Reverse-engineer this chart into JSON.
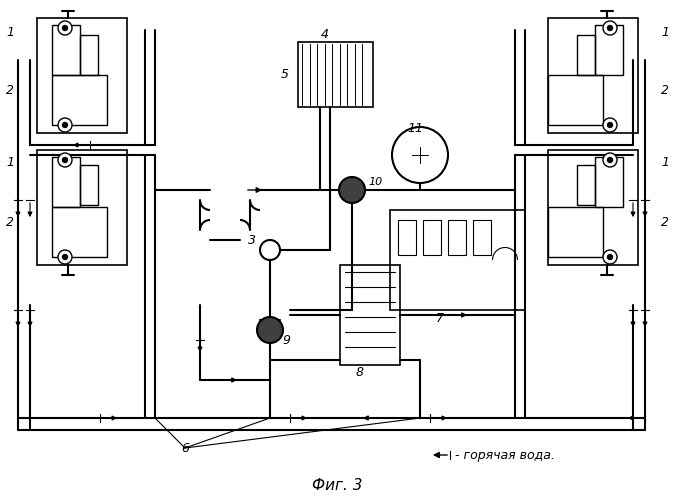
{
  "bg_color": "#ffffff",
  "line_color": "#000000",
  "fig_width": 6.75,
  "fig_height": 5.0,
  "dpi": 100,
  "title": "Фиг. 3",
  "legend": "- горячая вода."
}
